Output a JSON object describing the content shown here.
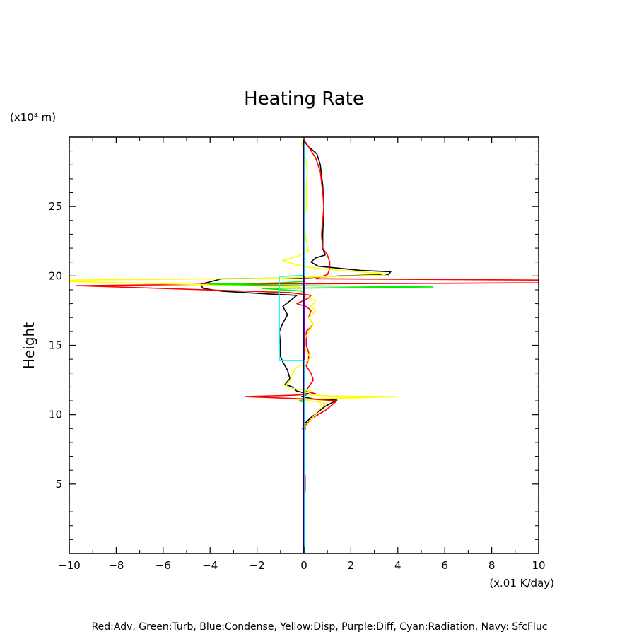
{
  "chart_data": {
    "type": "line",
    "title": "Heating Rate",
    "xlabel": "",
    "ylabel": "Height",
    "x_unit": "(x.01 K/day)",
    "y_unit": "(x10⁴ m)",
    "xlim": [
      -10,
      10
    ],
    "ylim": [
      0,
      30
    ],
    "x_ticks": [
      -10,
      -8,
      -6,
      -4,
      -2,
      0,
      2,
      4,
      6,
      8,
      10
    ],
    "y_ticks": [
      5,
      10,
      15,
      20,
      25
    ],
    "grid": false,
    "legend_note": "Red:Adv, Green:Turb, Blue:Condense, Yellow:Disp, Purple:Diff, Cyan:Radiation, Navy: SfcFluc",
    "series": [
      {
        "color": "#000000",
        "points": [
          [
            0,
            0
          ],
          [
            0,
            8.6
          ],
          [
            -0.05,
            9.0
          ],
          [
            0.05,
            9.4
          ],
          [
            0.3,
            9.8
          ],
          [
            0.6,
            10.2
          ],
          [
            0.9,
            10.6
          ],
          [
            1.4,
            11.05
          ],
          [
            0.4,
            11.15
          ],
          [
            -0.1,
            11.3
          ],
          [
            0.2,
            11.5
          ],
          [
            -0.3,
            11.7
          ],
          [
            -0.5,
            12.0
          ],
          [
            -0.8,
            12.2
          ],
          [
            -0.6,
            12.6
          ],
          [
            -0.7,
            13.2
          ],
          [
            -0.9,
            13.8
          ],
          [
            -1.0,
            14.2
          ],
          [
            -1.0,
            15.0
          ],
          [
            -1.05,
            16.0
          ],
          [
            -0.9,
            16.6
          ],
          [
            -0.7,
            17.2
          ],
          [
            -0.9,
            17.8
          ],
          [
            -0.6,
            18.2
          ],
          [
            -0.3,
            18.6
          ],
          [
            -1.5,
            18.7
          ],
          [
            -3.5,
            18.9
          ],
          [
            -4.3,
            19.1
          ],
          [
            -4.4,
            19.4
          ],
          [
            -3.5,
            19.8
          ],
          [
            -0.2,
            19.85
          ],
          [
            1.6,
            20.0
          ],
          [
            3.6,
            20.1
          ],
          [
            3.7,
            20.3
          ],
          [
            2.4,
            20.4
          ],
          [
            0.6,
            20.7
          ],
          [
            0.3,
            21.0
          ],
          [
            0.5,
            21.3
          ],
          [
            0.9,
            21.5
          ],
          [
            0.8,
            22.0
          ],
          [
            0.8,
            23.0
          ],
          [
            0.85,
            25.0
          ],
          [
            0.8,
            26.5
          ],
          [
            0.7,
            28.0
          ],
          [
            0.55,
            28.8
          ],
          [
            0.2,
            29.3
          ],
          [
            0,
            29.7
          ]
        ]
      },
      {
        "color": "#ff0000",
        "points": [
          [
            0,
            0
          ],
          [
            0,
            3.8
          ],
          [
            0.05,
            4.5
          ],
          [
            0.05,
            5.5
          ],
          [
            0,
            6.5
          ],
          [
            0,
            8.6
          ],
          [
            0.1,
            9.3
          ],
          [
            0.4,
            9.8
          ],
          [
            0.9,
            10.3
          ],
          [
            1.2,
            10.7
          ],
          [
            1.4,
            11.0
          ],
          [
            0.5,
            11.1
          ],
          [
            -2.5,
            11.3
          ],
          [
            -0.5,
            11.4
          ],
          [
            0.5,
            11.5
          ],
          [
            0.1,
            11.7
          ],
          [
            0.2,
            12.0
          ],
          [
            0.4,
            12.5
          ],
          [
            0.3,
            13.0
          ],
          [
            0.1,
            13.5
          ],
          [
            0.2,
            14.0
          ],
          [
            0.2,
            14.5
          ],
          [
            0.1,
            15.0
          ],
          [
            0.1,
            16.0
          ],
          [
            0.4,
            16.5
          ],
          [
            0.2,
            17.0
          ],
          [
            0.3,
            17.5
          ],
          [
            0.1,
            17.8
          ],
          [
            -0.3,
            18.0
          ],
          [
            0.2,
            18.4
          ],
          [
            0.3,
            18.6
          ],
          [
            -0.6,
            18.8
          ],
          [
            -9.7,
            19.3
          ],
          [
            -4.0,
            19.4
          ],
          [
            10,
            19.5
          ],
          [
            10,
            19.7
          ],
          [
            0.5,
            19.8
          ],
          [
            1.0,
            20.1
          ],
          [
            1.1,
            20.5
          ],
          [
            1.1,
            21.0
          ],
          [
            1.0,
            21.5
          ],
          [
            0.8,
            22.0
          ],
          [
            0.75,
            23.0
          ],
          [
            0.8,
            24.0
          ],
          [
            0.85,
            25.0
          ],
          [
            0.8,
            26.0
          ],
          [
            0.7,
            27.5
          ],
          [
            0.5,
            28.5
          ],
          [
            0.2,
            29.3
          ],
          [
            0,
            29.8
          ]
        ]
      },
      {
        "color": "#ffff00",
        "points": [
          [
            0,
            0
          ],
          [
            0,
            8.6
          ],
          [
            0.05,
            9.1
          ],
          [
            0.3,
            9.6
          ],
          [
            0.5,
            10.1
          ],
          [
            0.8,
            10.6
          ],
          [
            1.0,
            10.8
          ],
          [
            0.3,
            11.0
          ],
          [
            -0.3,
            11.1
          ],
          [
            3.9,
            11.3
          ],
          [
            1.0,
            11.35
          ],
          [
            -0.1,
            11.5
          ],
          [
            0.3,
            11.7
          ],
          [
            -0.5,
            11.9
          ],
          [
            -0.8,
            12.1
          ],
          [
            -0.6,
            12.4
          ],
          [
            -0.5,
            13.0
          ],
          [
            -0.3,
            13.4
          ],
          [
            0.1,
            13.8
          ],
          [
            0.3,
            14.1
          ],
          [
            0.1,
            14.5
          ],
          [
            0,
            15.3
          ],
          [
            0.2,
            16.0
          ],
          [
            0.4,
            16.5
          ],
          [
            0.2,
            17.0
          ],
          [
            0.5,
            17.5
          ],
          [
            0.3,
            17.8
          ],
          [
            0.5,
            18.2
          ],
          [
            0.1,
            18.5
          ],
          [
            -0.1,
            18.8
          ],
          [
            -0.2,
            19.2
          ],
          [
            -10,
            19.6
          ],
          [
            -10,
            19.7
          ],
          [
            -3.0,
            19.8
          ],
          [
            -1.0,
            19.85
          ],
          [
            2.0,
            20.0
          ],
          [
            3.5,
            20.05
          ],
          [
            3.2,
            20.2
          ],
          [
            1.5,
            20.4
          ],
          [
            0.3,
            20.6
          ],
          [
            -0.3,
            20.8
          ],
          [
            -0.9,
            21.1
          ],
          [
            -0.3,
            21.4
          ],
          [
            0.2,
            21.8
          ],
          [
            0.1,
            22.5
          ],
          [
            0,
            24.0
          ],
          [
            0.1,
            25.0
          ],
          [
            0.1,
            26.5
          ],
          [
            0.15,
            27.5
          ],
          [
            0.05,
            28.5
          ],
          [
            0,
            29.0
          ],
          [
            -0.1,
            29.5
          ],
          [
            0,
            29.8
          ]
        ]
      },
      {
        "color": "#00ee00",
        "points": [
          [
            0,
            0
          ],
          [
            0,
            10.9
          ],
          [
            -0.2,
            11.0
          ],
          [
            0,
            11.1
          ],
          [
            0,
            18.9
          ],
          [
            -1.8,
            19.1
          ],
          [
            5.5,
            19.2
          ],
          [
            -0.5,
            19.3
          ],
          [
            -4.0,
            19.4
          ],
          [
            -1.0,
            19.5
          ],
          [
            0,
            19.6
          ],
          [
            0,
            29.8
          ]
        ]
      },
      {
        "color": "#0000ff",
        "points": [
          [
            0,
            0
          ],
          [
            0,
            29.8
          ]
        ]
      },
      {
        "color": "#aa00aa",
        "points": [
          [
            0.03,
            0
          ],
          [
            0.03,
            29.8
          ]
        ]
      },
      {
        "color": "#00ffff",
        "points": [
          [
            0,
            0
          ],
          [
            0,
            13.9
          ],
          [
            -1.05,
            13.9
          ],
          [
            -1.05,
            19.95
          ],
          [
            0,
            20.05
          ],
          [
            0,
            29.8
          ]
        ]
      },
      {
        "color": "#000080",
        "points": [
          [
            -0.02,
            0
          ],
          [
            -0.02,
            29.8
          ]
        ]
      }
    ]
  }
}
